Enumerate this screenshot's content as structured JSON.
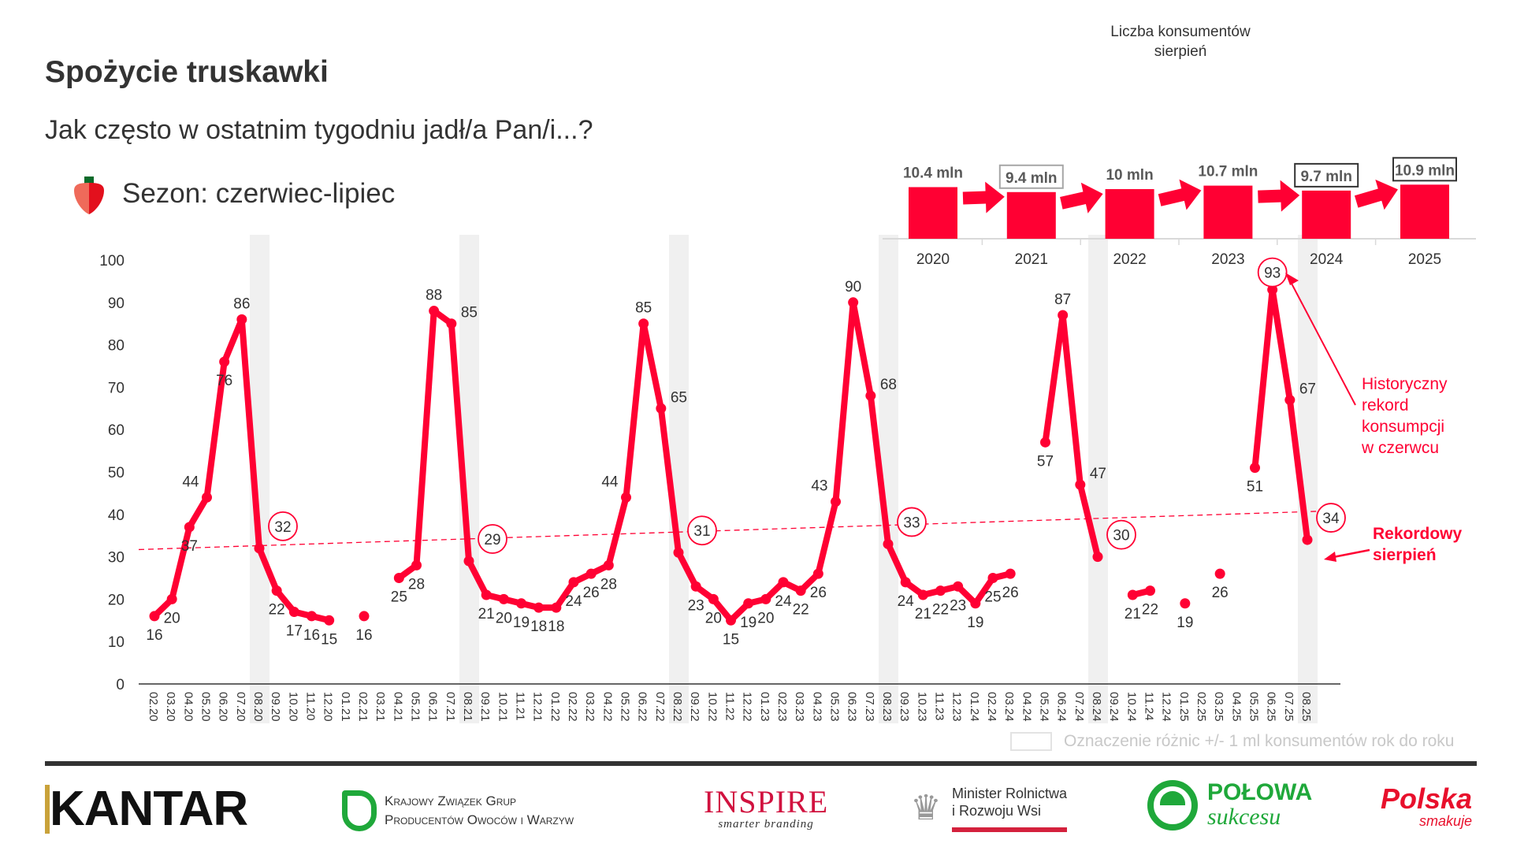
{
  "header": {
    "title": "Spożycie truskawki",
    "subtitle": "Jak często w ostatnim tygodniu jadł/a Pan/i...?",
    "season_label": "Sezon: czerwiec-lipiec",
    "season_icon": "strawberry-icon"
  },
  "colors": {
    "series": "#FF0033",
    "text": "#333333",
    "season_band": "#F0F0F0",
    "legend_text": "#C8C8C8"
  },
  "chart_data": [
    {
      "type": "line",
      "title": "",
      "xlabel": "",
      "ylabel": "",
      "ylim": [
        0,
        100
      ],
      "yticks": [
        0,
        10,
        20,
        30,
        40,
        50,
        60,
        70,
        80,
        90,
        100
      ],
      "grid": false,
      "highlighted_months": [
        "08.20",
        "08.21",
        "08.22",
        "08.23",
        "08.24",
        "08.25"
      ],
      "circled_labels": [
        "08.20",
        "08.21",
        "08.22",
        "08.23",
        "08.24",
        "06.25",
        "08.25"
      ],
      "trendline": {
        "style": "dashed",
        "start_value": 31.7,
        "end_value": 40.9
      },
      "x": [
        "02.20",
        "03.20",
        "04.20",
        "05.20",
        "06.20",
        "07.20",
        "08.20",
        "09.20",
        "10.20",
        "11.20",
        "12.20",
        "01.21",
        "02.21",
        "03.21",
        "04.21",
        "05.21",
        "06.21",
        "07.21",
        "08.21",
        "09.21",
        "10.21",
        "11.21",
        "12.21",
        "01.22",
        "02.22",
        "03.22",
        "04.22",
        "05.22",
        "06.22",
        "07.22",
        "08.22",
        "09.22",
        "10.22",
        "11.22",
        "12.22",
        "01.23",
        "02.23",
        "03.23",
        "04.23",
        "05.23",
        "06.23",
        "07.23",
        "08.23",
        "09.23",
        "10.23",
        "11.23",
        "12.23",
        "01.24",
        "02.24",
        "03.24",
        "04.24",
        "05.24",
        "06.24",
        "07.24",
        "08.24",
        "09.24",
        "10.24",
        "11.24",
        "12.24",
        "01.25",
        "02.25",
        "03.25",
        "04.25",
        "05.25",
        "06.25",
        "07.25",
        "08.25"
      ],
      "values": [
        16,
        20,
        37,
        44,
        76,
        86,
        32,
        22,
        17,
        16,
        15,
        null,
        16,
        null,
        25,
        28,
        88,
        85,
        29,
        21,
        20,
        19,
        18,
        18,
        24,
        26,
        28,
        44,
        85,
        65,
        31,
        23,
        20,
        15,
        19,
        20,
        24,
        22,
        26,
        43,
        90,
        68,
        33,
        24,
        21,
        22,
        23,
        19,
        25,
        26,
        null,
        57,
        87,
        47,
        30,
        null,
        21,
        22,
        null,
        19,
        null,
        26,
        null,
        51,
        93,
        67,
        34
      ]
    },
    {
      "type": "bar",
      "title": "Liczba konsumentów sierpień",
      "categories": [
        "2020",
        "2021",
        "2022",
        "2023",
        "2024",
        "2025"
      ],
      "values": [
        10.4,
        9.4,
        10,
        10.7,
        9.7,
        10.9
      ],
      "labels": [
        "10.4 mln",
        "9.4 mln",
        "10 mln",
        "10.7 mln",
        "9.7 mln",
        "10.9 mln"
      ],
      "label_box": [
        "none",
        "grey",
        "none",
        "none",
        "dark",
        "dark"
      ]
    }
  ],
  "inset": {
    "title_line1": "Liczba konsumentów",
    "title_line2": "sierpień"
  },
  "annotations": {
    "record_june": [
      "Historyczny",
      "rekord",
      "konsumpcji",
      "w czerwcu"
    ],
    "record_august": [
      "Rekordowy",
      "sierpień"
    ]
  },
  "legend": {
    "text": "Oznaczenie różnic +/- 1 ml konsumentów rok do roku"
  },
  "footer": {
    "logos": {
      "kantar": "KANTAR",
      "kzgp_line1": "Krajowy Związek Grup",
      "kzgp_line2": "Producentów Owoców i Warzyw",
      "inspire": "INSPIRE",
      "inspire_tagline": "smarter branding",
      "minister_line1": "Minister Rolnictwa",
      "minister_line2": "i Rozwoju Wsi",
      "polowa_line1": "POŁOWA",
      "polowa_line2": "sukcesu",
      "polska_line1": "Polska",
      "polska_line2": "smakuje"
    }
  }
}
